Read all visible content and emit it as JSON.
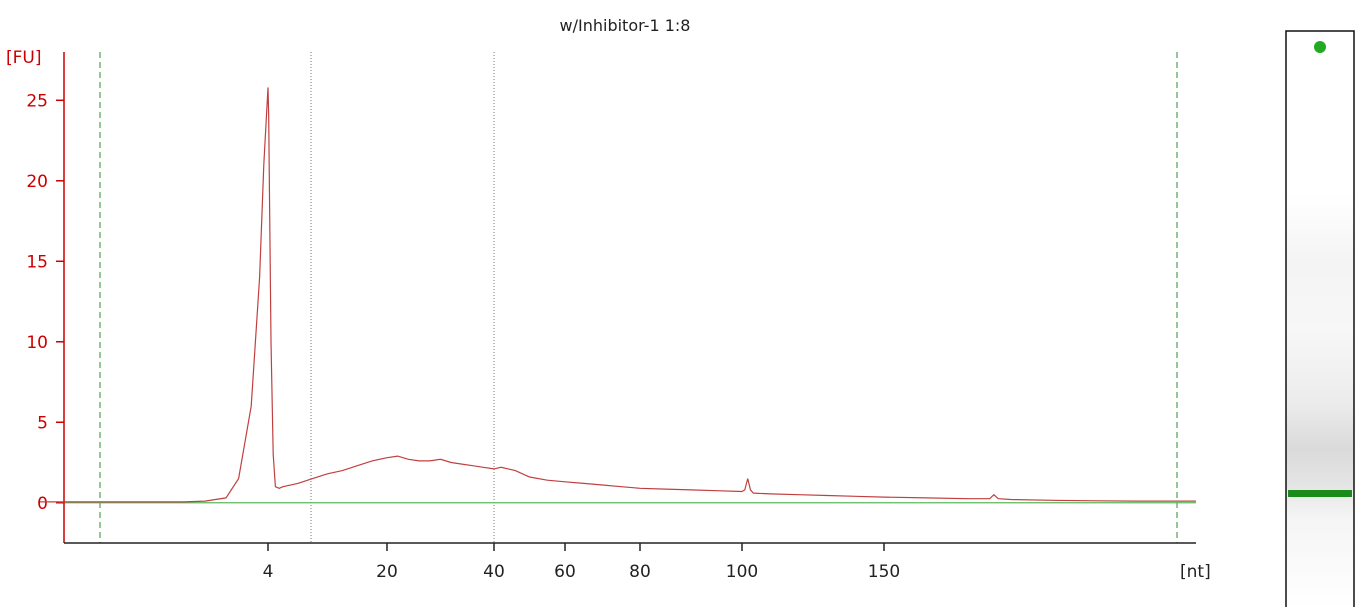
{
  "chart_data": {
    "type": "line",
    "title": "w/Inhibitor-1 1:8",
    "ylabel": "[FU]",
    "xlabel": "[nt]",
    "ylim": [
      -2.5,
      28
    ],
    "y_ticks": [
      0,
      5,
      10,
      15,
      20,
      25
    ],
    "x_tick_labels": [
      "4",
      "20",
      "40",
      "60",
      "80",
      "100",
      "150"
    ],
    "colors": {
      "trace": "#c04040",
      "y_axis": "#cc0000",
      "baseline": "#5cb85c",
      "marker_lines": "#2e8b2e",
      "gel_band": "#1a8a1a",
      "gel_marker": "#22aa22"
    },
    "series": [
      {
        "x": [
          0,
          1,
          2,
          2.5,
          3,
          3.3,
          3.6,
          3.8,
          3.9,
          4,
          4.1,
          4.2,
          4.4,
          4.7,
          5,
          5.5,
          6,
          8,
          10,
          12,
          14,
          16,
          18,
          20,
          22,
          24,
          26,
          28,
          30,
          32,
          34,
          36,
          38,
          40,
          42,
          44,
          46,
          48,
          50,
          55,
          60,
          65,
          70,
          75,
          80,
          85,
          90,
          95,
          100,
          101,
          102,
          103,
          104,
          110,
          120,
          130,
          140,
          150,
          160,
          170,
          175,
          176,
          177,
          180,
          190,
          200,
          210,
          220
        ],
        "values": [
          0.05,
          0.05,
          0.05,
          0.1,
          0.3,
          1.5,
          6,
          14,
          21,
          25.8,
          24,
          19,
          10,
          3,
          1,
          0.9,
          1.0,
          1.2,
          1.5,
          1.8,
          2.0,
          2.3,
          2.6,
          2.8,
          2.9,
          2.7,
          2.6,
          2.6,
          2.7,
          2.5,
          2.4,
          2.3,
          2.2,
          2.1,
          2.2,
          2.1,
          2.0,
          1.8,
          1.6,
          1.4,
          1.3,
          1.2,
          1.1,
          1.0,
          0.9,
          0.85,
          0.8,
          0.75,
          0.7,
          0.8,
          1.5,
          0.8,
          0.6,
          0.55,
          0.5,
          0.45,
          0.4,
          0.35,
          0.3,
          0.25,
          0.25,
          0.5,
          0.25,
          0.2,
          0.15,
          0.12,
          0.1,
          0.1
        ]
      }
    ]
  },
  "gel": {
    "band_label": "ladder-band"
  }
}
